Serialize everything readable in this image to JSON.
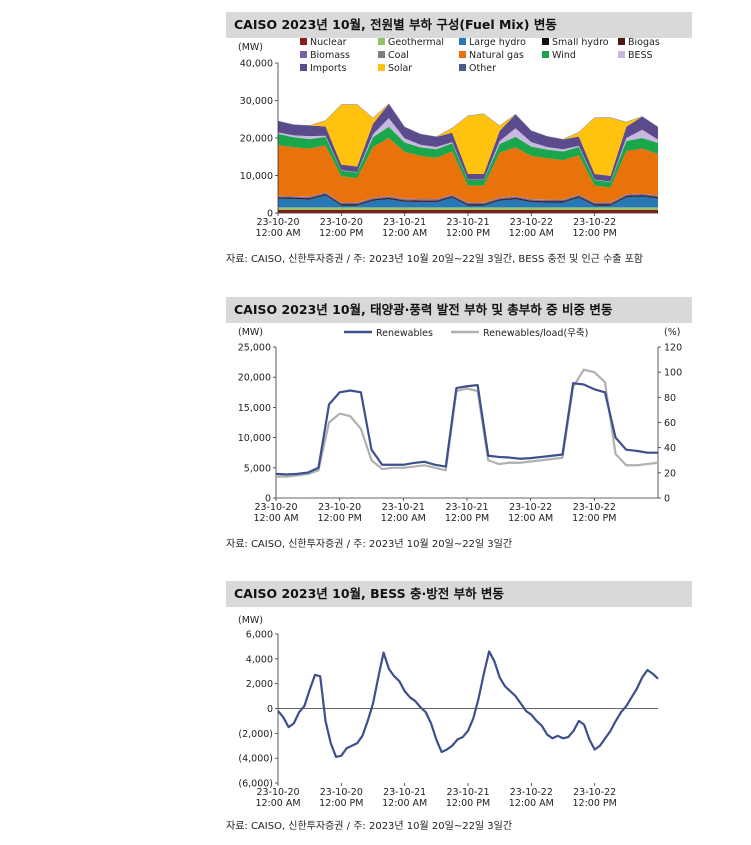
{
  "charts": [
    {
      "title": "CAISO 2023년 10월, 전원별 부하 구성(Fuel Mix) 변동",
      "source": "자료: CAISO, 신한투자증권 / 주: 2023년 10월 20일~22일 3일간, BESS 충전 및 인근 수출 포함",
      "unit_left": "(MW)",
      "y_ticks": [
        "40,000",
        "30,000",
        "20,000",
        "10,000",
        "0"
      ],
      "x_ticks": [
        {
          "date": "23-10-20",
          "time": "12:00 AM"
        },
        {
          "date": "23-10-20",
          "time": "12:00 PM"
        },
        {
          "date": "23-10-21",
          "time": "12:00 AM"
        },
        {
          "date": "23-10-21",
          "time": "12:00 PM"
        },
        {
          "date": "23-10-22",
          "time": "12:00 AM"
        },
        {
          "date": "23-10-22",
          "time": "12:00 PM"
        }
      ],
      "legend": [
        {
          "label": "Nuclear",
          "color": "#8b1a1a"
        },
        {
          "label": "Geothermal",
          "color": "#92c26b"
        },
        {
          "label": "Large hydro",
          "color": "#2878b8"
        },
        {
          "label": "Small hydro",
          "color": "#111111"
        },
        {
          "label": "Biogas",
          "color": "#4a1a10"
        },
        {
          "label": "Biomass",
          "color": "#7b5ea7"
        },
        {
          "label": "Coal",
          "color": "#7f7f7f"
        },
        {
          "label": "Natural gas",
          "color": "#e8720c"
        },
        {
          "label": "Wind",
          "color": "#1aa64a"
        },
        {
          "label": "BESS",
          "color": "#c8b8e0"
        },
        {
          "label": "Imports",
          "color": "#5b4a8c"
        },
        {
          "label": "Solar",
          "color": "#ffc20e"
        },
        {
          "label": "Other",
          "color": "#4a5a8a"
        }
      ]
    },
    {
      "title": "CAISO 2023년 10월, 태양광·풍력 발전 부하 및 총부하 중 비중 변동",
      "source": "자료: CAISO, 신한투자증권 / 주: 2023년 10월 20일~22일 3일간",
      "unit_left": "(MW)",
      "unit_right": "(%)",
      "y_ticks": [
        "25,000",
        "20,000",
        "15,000",
        "10,000",
        "5,000",
        "0"
      ],
      "y2_ticks": [
        "120",
        "100",
        "80",
        "60",
        "40",
        "20",
        "0"
      ],
      "x_ticks": [
        {
          "date": "23-10-20",
          "time": "12:00 AM"
        },
        {
          "date": "23-10-20",
          "time": "12:00 PM"
        },
        {
          "date": "23-10-21",
          "time": "12:00 AM"
        },
        {
          "date": "23-10-21",
          "time": "12:00 PM"
        },
        {
          "date": "23-10-22",
          "time": "12:00 AM"
        },
        {
          "date": "23-10-22",
          "time": "12:00 PM"
        }
      ],
      "legend": [
        {
          "label": "Renewables",
          "color": "#3d4f8c"
        },
        {
          "label": "Renewables/load(우축)",
          "color": "#b0b0b0"
        }
      ]
    },
    {
      "title": "CAISO 2023년 10월, BESS 충·방전 부하 변동",
      "source": "자료: CAISO, 신한투자증권 / 주: 2023년 10월 20일~22일 3일간",
      "unit_left": "(MW)",
      "y_ticks": [
        "6,000",
        "4,000",
        "2,000",
        "0",
        "(2,000)",
        "(4,000)",
        "(6,000)"
      ],
      "x_ticks": [
        {
          "date": "23-10-20",
          "time": "12:00 AM"
        },
        {
          "date": "23-10-20",
          "time": "12:00 PM"
        },
        {
          "date": "23-10-21",
          "time": "12:00 AM"
        },
        {
          "date": "23-10-21",
          "time": "12:00 PM"
        },
        {
          "date": "23-10-22",
          "time": "12:00 AM"
        },
        {
          "date": "23-10-22",
          "time": "12:00 PM"
        }
      ],
      "legend": [
        {
          "label": "BESS",
          "color": "#3d4f8c"
        }
      ]
    }
  ],
  "chart_data": [
    {
      "type": "area",
      "title": "CAISO 2023년 10월, 전원별 부하 구성(Fuel Mix) 변동",
      "ylabel": "(MW)",
      "ylim": [
        0,
        40000
      ],
      "x": [
        0,
        3,
        6,
        9,
        12,
        15,
        18,
        21,
        24,
        27,
        30,
        33,
        36,
        39,
        42,
        45,
        48,
        51,
        54,
        57,
        60,
        63,
        66,
        69,
        72
      ],
      "x_unit": "hours since 2023-10-20 00:00",
      "series": [
        {
          "name": "Nuclear",
          "values": [
            800,
            800,
            800,
            800,
            800,
            800,
            800,
            800,
            800,
            800,
            800,
            800,
            800,
            800,
            800,
            800,
            800,
            800,
            800,
            800,
            800,
            800,
            800,
            800,
            800
          ]
        },
        {
          "name": "Geothermal",
          "values": [
            700,
            700,
            700,
            700,
            700,
            700,
            700,
            700,
            700,
            700,
            700,
            700,
            700,
            700,
            700,
            700,
            700,
            700,
            700,
            700,
            700,
            700,
            700,
            700,
            700
          ]
        },
        {
          "name": "Large hydro",
          "values": [
            2300,
            2200,
            2100,
            3200,
            500,
            500,
            1800,
            2200,
            1500,
            1400,
            1400,
            2600,
            500,
            500,
            1800,
            2200,
            1400,
            1300,
            1300,
            2600,
            500,
            500,
            2700,
            2900,
            2400
          ]
        },
        {
          "name": "Small hydro",
          "values": [
            200,
            200,
            200,
            200,
            200,
            200,
            200,
            200,
            200,
            200,
            200,
            200,
            200,
            200,
            200,
            200,
            200,
            200,
            200,
            200,
            200,
            200,
            200,
            200,
            200
          ]
        },
        {
          "name": "Biogas",
          "values": [
            200,
            200,
            200,
            200,
            200,
            200,
            200,
            200,
            200,
            200,
            200,
            200,
            200,
            200,
            200,
            200,
            200,
            200,
            200,
            200,
            200,
            200,
            200,
            200,
            200
          ]
        },
        {
          "name": "Biomass",
          "values": [
            300,
            300,
            300,
            300,
            300,
            300,
            300,
            300,
            300,
            300,
            300,
            300,
            300,
            300,
            300,
            300,
            300,
            300,
            300,
            300,
            300,
            300,
            300,
            300,
            300
          ]
        },
        {
          "name": "Coal",
          "values": [
            100,
            100,
            100,
            100,
            100,
            100,
            100,
            100,
            100,
            100,
            100,
            100,
            100,
            100,
            100,
            100,
            100,
            100,
            100,
            100,
            100,
            100,
            100,
            100,
            100
          ]
        },
        {
          "name": "Natural gas",
          "values": [
            13500,
            13000,
            12800,
            12500,
            7000,
            6500,
            13500,
            15500,
            12500,
            11500,
            11000,
            11500,
            4500,
            4500,
            12000,
            13000,
            11500,
            11000,
            10500,
            10500,
            4500,
            4000,
            11500,
            12000,
            11000
          ]
        },
        {
          "name": "Wind",
          "values": [
            3000,
            2700,
            2500,
            2300,
            1500,
            1500,
            2600,
            3000,
            2500,
            2300,
            2300,
            2200,
            1500,
            1500,
            2300,
            2800,
            2500,
            2300,
            2300,
            2200,
            1500,
            1500,
            2700,
            2800,
            3000
          ]
        },
        {
          "name": "BESS",
          "values": [
            400,
            500,
            800,
            300,
            100,
            100,
            800,
            2300,
            1100,
            700,
            600,
            300,
            100,
            100,
            800,
            2300,
            1200,
            700,
            600,
            300,
            100,
            100,
            800,
            2200,
            900
          ]
        },
        {
          "name": "Imports",
          "values": [
            3000,
            2800,
            2800,
            2500,
            1500,
            1500,
            2800,
            3800,
            3000,
            2800,
            2700,
            2500,
            1500,
            1500,
            2700,
            3700,
            3000,
            2800,
            2600,
            2500,
            1500,
            1500,
            3000,
            3500,
            3300
          ]
        },
        {
          "name": "Solar",
          "values": [
            0,
            0,
            0,
            1500,
            16000,
            16500,
            1500,
            0,
            0,
            0,
            0,
            1200,
            15500,
            16000,
            1300,
            0,
            0,
            0,
            0,
            1100,
            15000,
            15500,
            1200,
            0,
            0
          ]
        },
        {
          "name": "Other",
          "values": [
            100,
            100,
            100,
            100,
            100,
            100,
            100,
            100,
            100,
            100,
            100,
            100,
            100,
            100,
            100,
            100,
            100,
            100,
            100,
            100,
            100,
            100,
            100,
            100,
            100
          ]
        }
      ]
    },
    {
      "type": "line",
      "title": "CAISO 2023년 10월, 태양광·풍력 발전 부하 및 총부하 중 비중 변동",
      "ylabel": "(MW)",
      "y2label": "(%)",
      "ylim": [
        0,
        25000
      ],
      "y2lim": [
        0,
        120
      ],
      "x": [
        0,
        2,
        4,
        6,
        8,
        10,
        12,
        14,
        16,
        18,
        20,
        22,
        24,
        26,
        28,
        30,
        32,
        34,
        36,
        38,
        40,
        42,
        44,
        46,
        48,
        50,
        52,
        54,
        56,
        58,
        60,
        62,
        64,
        66,
        68,
        70,
        72
      ],
      "x_unit": "hours since 2023-10-20 00:00",
      "series": [
        {
          "name": "Renewables",
          "axis": "left",
          "values": [
            4000,
            3900,
            4000,
            4200,
            5000,
            15500,
            17500,
            17800,
            17500,
            8000,
            5500,
            5500,
            5500,
            5800,
            6000,
            5500,
            5200,
            18200,
            18500,
            18700,
            7000,
            6800,
            6700,
            6500,
            6600,
            6800,
            7000,
            7200,
            19000,
            18800,
            18000,
            17500,
            10000,
            8000,
            7800,
            7500,
            7500
          ]
        },
        {
          "name": "Renewables/load(우축)",
          "axis": "right",
          "values": [
            17,
            17,
            18,
            19,
            22,
            60,
            67,
            65,
            55,
            30,
            23,
            24,
            24,
            25,
            26,
            24,
            22,
            85,
            87,
            85,
            30,
            27,
            28,
            28,
            29,
            30,
            31,
            32,
            88,
            102,
            100,
            92,
            35,
            26,
            26,
            27,
            28
          ]
        }
      ]
    },
    {
      "type": "line",
      "title": "CAISO 2023년 10월, BESS 충·방전 부하 변동",
      "ylabel": "(MW)",
      "ylim": [
        -6000,
        6000
      ],
      "x": [
        0,
        1,
        2,
        3,
        4,
        5,
        6,
        7,
        8,
        9,
        10,
        11,
        12,
        13,
        14,
        15,
        16,
        17,
        18,
        19,
        20,
        21,
        22,
        23,
        24,
        25,
        26,
        27,
        28,
        29,
        30,
        31,
        32,
        33,
        34,
        35,
        36,
        37,
        38,
        39,
        40,
        41,
        42,
        43,
        44,
        45,
        46,
        47,
        48,
        49,
        50,
        51,
        52,
        53,
        54,
        55,
        56,
        57,
        58,
        59,
        60,
        61,
        62,
        63,
        64,
        65,
        66,
        67,
        68,
        69,
        70,
        71,
        72
      ],
      "x_unit": "hours since 2023-10-20 00:00",
      "series": [
        {
          "name": "BESS",
          "values": [
            -200,
            -700,
            -1500,
            -1200,
            -300,
            200,
            1500,
            2700,
            2600,
            -1000,
            -2800,
            -3900,
            -3800,
            -3200,
            -3000,
            -2800,
            -2200,
            -1000,
            400,
            2500,
            4500,
            3200,
            2600,
            2200,
            1400,
            900,
            600,
            100,
            -300,
            -1200,
            -2500,
            -3500,
            -3300,
            -3000,
            -2500,
            -2300,
            -1800,
            -800,
            800,
            2800,
            4600,
            3800,
            2500,
            1800,
            1400,
            1000,
            400,
            -200,
            -500,
            -1000,
            -1400,
            -2100,
            -2400,
            -2200,
            -2400,
            -2300,
            -1800,
            -1000,
            -1300,
            -2500,
            -3300,
            -3000,
            -2400,
            -1800,
            -1000,
            -300,
            200,
            900,
            1600,
            2500,
            3100,
            2800,
            2400
          ]
        }
      ]
    }
  ]
}
